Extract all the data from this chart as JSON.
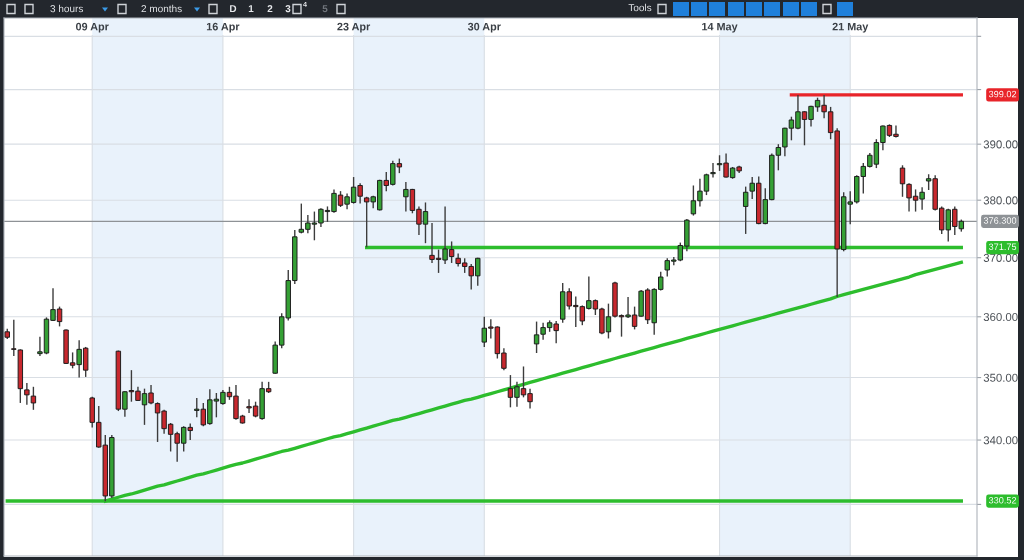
{
  "chart_data": {
    "type": "candlestick",
    "categories": [
      null,
      null,
      null,
      null,
      null,
      null,
      null,
      null,
      null,
      null,
      null,
      null,
      null,
      "09 Apr",
      null,
      null,
      null,
      null,
      null,
      null,
      null,
      null,
      null,
      null,
      null,
      null,
      null,
      null,
      null,
      null,
      null,
      null,
      null,
      "16 Apr",
      null,
      null,
      null,
      null,
      null,
      null,
      null,
      null,
      null,
      null,
      null,
      null,
      null,
      null,
      null,
      null,
      null,
      null,
      null,
      "23 Apr",
      null,
      null,
      null,
      null,
      null,
      null,
      null,
      null,
      null,
      null,
      null,
      null,
      null,
      null,
      null,
      null,
      null,
      null,
      null,
      "30 Apr",
      null,
      null,
      null,
      null,
      null,
      null,
      null,
      null,
      null,
      null,
      null,
      null,
      null,
      null,
      null,
      null,
      null,
      null,
      null,
      null,
      null,
      null,
      null,
      null,
      null,
      null,
      null,
      null,
      null,
      null,
      null,
      null,
      null,
      null,
      null,
      "14 May",
      null,
      null,
      null,
      null,
      null,
      null,
      null,
      null,
      null,
      null,
      null,
      null,
      null,
      null,
      null,
      null,
      null,
      null,
      null,
      "21 May",
      null,
      null,
      null,
      null,
      null,
      null,
      null,
      null,
      null,
      null,
      null,
      null,
      null,
      null,
      null,
      null,
      null
    ],
    "ohlc": [
      [
        357.5,
        358.0,
        356.3,
        356.6
      ],
      [
        354.7,
        359.5,
        353.5,
        354.6
      ],
      [
        354.5,
        354.6,
        345.9,
        348.2
      ],
      [
        348.0,
        349.1,
        345.6,
        347.2
      ],
      [
        347.0,
        348.5,
        344.8,
        345.9
      ],
      [
        353.9,
        356.7,
        353.5,
        354.2
      ],
      [
        354.0,
        359.9,
        353.8,
        359.6
      ],
      [
        359.4,
        364.8,
        359.3,
        361.2
      ],
      [
        361.3,
        361.7,
        358.4,
        359.2
      ],
      [
        357.8,
        357.9,
        352.2,
        352.3
      ],
      [
        352.4,
        354.1,
        351.5,
        352.0
      ],
      [
        352.1,
        356.1,
        350.0,
        354.6
      ],
      [
        354.8,
        355.0,
        350.1,
        351.2
      ],
      [
        346.7,
        346.9,
        342.0,
        342.8
      ],
      [
        342.8,
        345.4,
        338.8,
        338.9
      ],
      [
        339.2,
        340.8,
        330.5,
        331.3
      ],
      [
        331.3,
        340.8,
        331.0,
        340.4
      ],
      [
        354.3,
        354.4,
        344.6,
        344.9
      ],
      [
        344.9,
        347.8,
        343.7,
        347.7
      ],
      [
        347.9,
        351.2,
        346.1,
        347.7
      ],
      [
        347.8,
        348.5,
        346.2,
        346.3
      ],
      [
        345.6,
        348.2,
        342.4,
        347.4
      ],
      [
        347.5,
        348.8,
        345.7,
        345.9
      ],
      [
        345.8,
        346.0,
        339.7,
        344.3
      ],
      [
        344.6,
        344.8,
        341.0,
        341.8
      ],
      [
        342.5,
        342.7,
        338.2,
        340.9
      ],
      [
        341.0,
        341.3,
        336.6,
        339.5
      ],
      [
        339.5,
        342.2,
        338.2,
        342.0
      ],
      [
        342.0,
        342.6,
        340.0,
        341.5
      ],
      [
        344.7,
        346.7,
        343.6,
        344.9
      ],
      [
        344.9,
        345.9,
        342.2,
        342.4
      ],
      [
        342.6,
        348.1,
        342.4,
        346.4
      ],
      [
        346.2,
        347.5,
        343.6,
        346.5
      ],
      [
        345.8,
        348.0,
        345.6,
        347.6
      ],
      [
        347.6,
        348.5,
        346.4,
        346.9
      ],
      [
        347.0,
        348.8,
        343.2,
        343.4
      ],
      [
        343.8,
        344.0,
        342.6,
        342.7
      ],
      [
        345.3,
        346.5,
        344.3,
        345.1
      ],
      [
        345.4,
        346.1,
        343.6,
        343.8
      ],
      [
        343.4,
        349.3,
        343.2,
        348.2
      ],
      [
        348.2,
        349.3,
        347.5,
        347.7
      ],
      [
        350.7,
        355.9,
        350.6,
        355.3
      ],
      [
        355.3,
        360.6,
        354.8,
        360.0
      ],
      [
        359.8,
        367.9,
        359.4,
        366.1
      ],
      [
        366.1,
        374.8,
        365.5,
        373.6
      ],
      [
        374.4,
        379.4,
        374.2,
        374.9
      ],
      [
        374.9,
        377.4,
        374.2,
        376.0
      ],
      [
        375.8,
        378.0,
        373.0,
        376.0
      ],
      [
        376.0,
        378.6,
        375.3,
        378.4
      ],
      [
        378.0,
        378.9,
        376.2,
        378.2
      ],
      [
        378.0,
        381.9,
        377.8,
        381.2
      ],
      [
        380.9,
        381.6,
        378.8,
        379.1
      ],
      [
        379.3,
        381.2,
        378.4,
        380.6
      ],
      [
        379.6,
        384.1,
        379.4,
        382.3
      ],
      [
        382.6,
        383.0,
        379.4,
        380.7
      ],
      [
        380.4,
        380.6,
        371.8,
        379.7
      ],
      [
        379.7,
        380.8,
        378.6,
        380.6
      ],
      [
        378.3,
        383.6,
        378.2,
        383.5
      ],
      [
        383.5,
        385.0,
        381.6,
        382.6
      ],
      [
        382.8,
        387.0,
        382.6,
        386.5
      ],
      [
        386.5,
        387.4,
        384.8,
        385.9
      ],
      [
        380.6,
        383.2,
        378.0,
        381.9
      ],
      [
        381.9,
        382.0,
        377.7,
        378.2
      ],
      [
        378.4,
        378.9,
        373.9,
        375.8
      ],
      [
        375.8,
        379.6,
        372.5,
        378.0
      ],
      [
        370.4,
        376.0,
        369.1,
        369.7
      ],
      [
        369.9,
        371.4,
        367.4,
        369.7
      ],
      [
        369.6,
        378.9,
        368.9,
        371.5
      ],
      [
        371.4,
        372.8,
        369.1,
        370.2
      ],
      [
        369.9,
        370.7,
        368.5,
        369.0
      ],
      [
        369.1,
        369.9,
        367.4,
        368.5
      ],
      [
        368.5,
        368.9,
        364.6,
        366.9
      ],
      [
        366.9,
        370.0,
        365.2,
        369.9
      ],
      [
        355.8,
        360.0,
        355.0,
        358.1
      ],
      [
        358.3,
        359.6,
        356.4,
        358.1
      ],
      [
        358.3,
        358.4,
        353.1,
        353.9
      ],
      [
        354.0,
        354.8,
        351.2,
        351.5
      ],
      [
        348.2,
        350.4,
        345.2,
        346.8
      ],
      [
        346.8,
        349.3,
        345.3,
        348.5
      ],
      [
        348.2,
        351.8,
        346.8,
        347.2
      ],
      [
        347.4,
        348.2,
        345.0,
        346.1
      ],
      [
        355.5,
        359.2,
        354.0,
        357.0
      ],
      [
        357.1,
        359.0,
        356.2,
        358.2
      ],
      [
        358.2,
        359.4,
        357.5,
        359.0
      ],
      [
        358.8,
        359.3,
        355.6,
        357.7
      ],
      [
        359.6,
        365.7,
        359.0,
        364.2
      ],
      [
        364.2,
        364.8,
        361.2,
        361.8
      ],
      [
        361.9,
        363.4,
        358.3,
        361.7
      ],
      [
        361.7,
        361.9,
        358.6,
        359.3
      ],
      [
        361.4,
        366.8,
        361.2,
        362.7
      ],
      [
        362.7,
        362.9,
        360.3,
        361.3
      ],
      [
        361.3,
        361.5,
        357.1,
        357.3
      ],
      [
        357.5,
        362.2,
        356.4,
        360.0
      ],
      [
        365.7,
        365.9,
        359.9,
        360.1
      ],
      [
        360.2,
        360.4,
        356.7,
        360.0
      ],
      [
        360.0,
        363.3,
        359.8,
        360.3
      ],
      [
        360.3,
        361.7,
        357.9,
        358.4
      ],
      [
        360.1,
        364.5,
        360.0,
        364.3
      ],
      [
        364.5,
        364.8,
        358.8,
        359.5
      ],
      [
        359.0,
        364.8,
        357.0,
        364.6
      ],
      [
        364.6,
        367.6,
        364.4,
        366.7
      ],
      [
        367.9,
        369.9,
        366.8,
        369.5
      ],
      [
        369.4,
        370.1,
        368.7,
        369.6
      ],
      [
        369.6,
        372.6,
        369.4,
        372.1
      ],
      [
        372.0,
        376.7,
        371.1,
        376.5
      ],
      [
        377.6,
        382.6,
        377.3,
        379.9
      ],
      [
        379.9,
        383.8,
        378.9,
        381.6
      ],
      [
        381.6,
        384.7,
        380.9,
        384.5
      ],
      [
        384.7,
        386.6,
        384.0,
        384.9
      ],
      [
        386.3,
        388.0,
        385.2,
        386.5
      ],
      [
        386.6,
        388.3,
        384.0,
        384.1
      ],
      [
        384.0,
        385.9,
        383.8,
        385.7
      ],
      [
        385.9,
        386.1,
        384.8,
        385.2
      ],
      [
        378.9,
        382.4,
        374.1,
        381.4
      ],
      [
        381.6,
        384.1,
        380.2,
        383.0
      ],
      [
        383.0,
        384.2,
        375.8,
        375.9
      ],
      [
        375.9,
        382.1,
        375.8,
        380.1
      ],
      [
        380.1,
        388.3,
        380.0,
        388.0
      ],
      [
        388.0,
        390.0,
        385.3,
        389.4
      ],
      [
        389.5,
        393.0,
        387.8,
        392.9
      ],
      [
        392.9,
        395.0,
        390.7,
        394.4
      ],
      [
        392.9,
        399.0,
        392.7,
        395.9
      ],
      [
        395.9,
        396.0,
        389.8,
        394.5
      ],
      [
        394.5,
        397.0,
        393.2,
        396.9
      ],
      [
        396.8,
        398.5,
        395.9,
        398.0
      ],
      [
        397.1,
        399.0,
        394.7,
        395.9
      ],
      [
        395.9,
        396.8,
        390.9,
        392.1
      ],
      [
        392.4,
        392.9,
        363.3,
        371.5
      ],
      [
        371.4,
        381.4,
        371.1,
        380.6
      ],
      [
        379.3,
        381.6,
        375.8,
        379.7
      ],
      [
        379.7,
        384.4,
        379.4,
        384.2
      ],
      [
        384.2,
        386.6,
        381.2,
        386.0
      ],
      [
        386.0,
        388.4,
        385.8,
        388.0
      ],
      [
        386.4,
        390.9,
        385.7,
        390.3
      ],
      [
        390.3,
        393.4,
        388.9,
        393.3
      ],
      [
        393.4,
        393.6,
        391.3,
        391.6
      ],
      [
        391.8,
        393.4,
        391.2,
        391.4
      ],
      [
        385.7,
        386.2,
        380.6,
        382.9
      ],
      [
        382.8,
        383.0,
        378.0,
        380.4
      ],
      [
        380.7,
        381.9,
        378.0,
        380.0
      ],
      [
        380.2,
        382.3,
        378.3,
        381.4
      ],
      [
        383.4,
        384.6,
        381.8,
        383.8
      ],
      [
        383.8,
        384.4,
        378.2,
        378.4
      ],
      [
        378.6,
        378.9,
        374.1,
        374.8
      ],
      [
        374.8,
        378.5,
        372.8,
        378.3
      ],
      [
        378.4,
        378.9,
        373.9,
        375.4
      ],
      [
        375.0,
        376.6,
        374.5,
        376.3
      ]
    ],
    "colors": [
      "#c8282e",
      "#c8282e",
      "#c8282e",
      "#c8282e",
      "#c8282e",
      "#35a035",
      "#35a035",
      "#35a035",
      "#c8282e",
      "#c8282e",
      "#c8282e",
      "#35a035",
      "#c8282e",
      "#c8282e",
      "#c8282e",
      "#c8282e",
      "#35a035",
      "#c8282e",
      "#35a035",
      "#c8282e",
      "#c8282e",
      "#35a035",
      "#c8282e",
      "#c8282e",
      "#c8282e",
      "#c8282e",
      "#c8282e",
      "#35a035",
      "#c8282e",
      "#35a035",
      "#c8282e",
      "#35a035",
      "#35a035",
      "#35a035",
      "#c8282e",
      "#c8282e",
      "#c8282e",
      "#c8282e",
      "#c8282e",
      "#35a035",
      "#c8282e",
      "#35a035",
      "#35a035",
      "#35a035",
      "#35a035",
      "#35a035",
      "#35a035",
      "#35a035",
      "#35a035",
      "#35a035",
      "#35a035",
      "#c8282e",
      "#35a035",
      "#35a035",
      "#c8282e",
      "#c8282e",
      "#35a035",
      "#35a035",
      "#c8282e",
      "#35a035",
      "#c8282e",
      "#35a035",
      "#c8282e",
      "#c8282e",
      "#35a035",
      "#c8282e",
      "#c8282e",
      "#35a035",
      "#c8282e",
      "#c8282e",
      "#c8282e",
      "#c8282e",
      "#35a035",
      "#35a035",
      "#c8282e",
      "#c8282e",
      "#c8282e",
      "#c8282e",
      "#35a035",
      "#c8282e",
      "#c8282e",
      "#35a035",
      "#35a035",
      "#35a035",
      "#c8282e",
      "#35a035",
      "#c8282e",
      "#c8282e",
      "#c8282e",
      "#35a035",
      "#c8282e",
      "#c8282e",
      "#35a035",
      "#c8282e",
      "#c8282e",
      "#35a035",
      "#c8282e",
      "#35a035",
      "#c8282e",
      "#35a035",
      "#35a035",
      "#35a035",
      "#35a035",
      "#35a035",
      "#35a035",
      "#35a035",
      "#35a035",
      "#35a035",
      "#35a035",
      "#35a035",
      "#c8282e",
      "#35a035",
      "#c8282e",
      "#35a035",
      "#35a035",
      "#c8282e",
      "#35a035",
      "#35a035",
      "#35a035",
      "#35a035",
      "#35a035",
      "#35a035",
      "#c8282e",
      "#35a035",
      "#35a035",
      "#c8282e",
      "#c8282e",
      "#c8282e",
      "#35a035",
      "#35a035",
      "#35a035",
      "#35a035",
      "#35a035",
      "#35a035",
      "#35a035",
      "#c8282e",
      "#c8282e",
      "#c8282e",
      "#c8282e",
      "#c8282e",
      "#35a035",
      "#35a035",
      "#c8282e",
      "#c8282e",
      "#35a035",
      "#c8282e",
      "#35a035"
    ],
    "series": [
      {
        "type": "line",
        "name": "330.52",
        "color": "#2dbd2d",
        "values": [
          330.52,
          330.52,
          330.52,
          330.52,
          330.52,
          330.52,
          330.52,
          330.52,
          330.52,
          330.52,
          330.52,
          330.52,
          330.52,
          330.52,
          330.52,
          330.52,
          330.52,
          330.52,
          330.52,
          330.52,
          330.52,
          330.52,
          330.52,
          330.52,
          330.52,
          330.52,
          330.52,
          330.52,
          330.52,
          330.52,
          330.52,
          330.52,
          330.52,
          330.52,
          330.52,
          330.52,
          330.52,
          330.52,
          330.52,
          330.52,
          330.52,
          330.52,
          330.52,
          330.52,
          330.52,
          330.52,
          330.52,
          330.52,
          330.52,
          330.52,
          330.52,
          330.52,
          330.52,
          330.52,
          330.52,
          330.52,
          330.52,
          330.52,
          330.52,
          330.52,
          330.52,
          330.52,
          330.52,
          330.52,
          330.52,
          330.52,
          330.52,
          330.52,
          330.52,
          330.52,
          330.52,
          330.52,
          330.52,
          330.52,
          330.52,
          330.52,
          330.52,
          330.52,
          330.52,
          330.52,
          330.52,
          330.52,
          330.52,
          330.52,
          330.52,
          330.52,
          330.52,
          330.52,
          330.52,
          330.52,
          330.52,
          330.52,
          330.52,
          330.52,
          330.52,
          330.52,
          330.52,
          330.52,
          330.52,
          330.52,
          330.52,
          330.52,
          330.52,
          330.52,
          330.52,
          330.52,
          330.52,
          330.52,
          330.52,
          330.52,
          330.52,
          330.52,
          330.52,
          330.52,
          330.52,
          330.52,
          330.52,
          330.52,
          330.52,
          330.52,
          330.52,
          330.52,
          330.52,
          330.52,
          330.52,
          330.52,
          330.52,
          330.52,
          330.52,
          330.52,
          330.52,
          330.52,
          330.52,
          330.52,
          330.52,
          330.52,
          330.52,
          330.52,
          330.52,
          330.52,
          330.52,
          330.52,
          330.52,
          330.52,
          330.52,
          330.52,
          330.52
        ]
      },
      {
        "type": "line",
        "color": "#2dbd2d",
        "values": [
          null,
          null,
          null,
          null,
          null,
          null,
          null,
          null,
          null,
          null,
          null,
          null,
          null,
          null,
          null,
          330.5,
          330.8,
          331.1,
          331.4,
          331.6,
          331.9,
          332.2,
          332.5,
          332.8,
          333.0,
          333.3,
          333.6,
          333.9,
          334.2,
          334.5,
          334.7,
          335.0,
          335.3,
          335.6,
          335.9,
          336.2,
          336.4,
          336.7,
          337.0,
          337.3,
          337.6,
          337.9,
          338.2,
          338.4,
          338.7,
          339.0,
          339.3,
          339.6,
          339.9,
          340.2,
          340.5,
          340.7,
          341.0,
          341.3,
          341.6,
          341.9,
          342.2,
          342.5,
          342.8,
          343.1,
          343.3,
          343.6,
          343.9,
          344.2,
          344.5,
          344.8,
          345.1,
          345.4,
          345.7,
          346.0,
          346.3,
          346.5,
          346.8,
          347.1,
          347.4,
          347.7,
          348.0,
          348.3,
          348.6,
          348.9,
          349.2,
          349.5,
          349.8,
          350.1,
          350.4,
          350.7,
          351.0,
          351.3,
          351.6,
          351.9,
          352.2,
          352.5,
          352.8,
          353.1,
          353.4,
          353.7,
          354.0,
          354.3,
          354.6,
          354.9,
          355.2,
          355.5,
          355.8,
          356.1,
          356.4,
          356.7,
          357.0,
          357.3,
          357.6,
          357.9,
          358.2,
          358.5,
          358.8,
          359.1,
          359.4,
          359.7,
          360.0,
          360.3,
          360.6,
          360.9,
          361.2,
          361.5,
          361.8,
          362.1,
          362.4,
          362.7,
          363.0,
          363.4,
          363.7,
          364.0,
          364.3,
          364.6,
          364.9,
          365.2,
          365.5,
          365.8,
          366.1,
          366.4,
          366.7,
          367.1,
          367.4,
          367.7,
          368.0,
          368.3,
          368.6,
          368.9,
          369.2
        ]
      },
      {
        "type": "line",
        "name": "371.75",
        "color": "#2dbd2d",
        "values": [
          null,
          null,
          null,
          null,
          null,
          null,
          null,
          null,
          null,
          null,
          null,
          null,
          null,
          null,
          null,
          null,
          null,
          null,
          null,
          null,
          null,
          null,
          null,
          null,
          null,
          null,
          null,
          null,
          null,
          null,
          null,
          null,
          null,
          null,
          null,
          null,
          null,
          null,
          null,
          null,
          null,
          null,
          null,
          null,
          null,
          null,
          null,
          null,
          null,
          null,
          null,
          null,
          null,
          null,
          null,
          371.75,
          371.75,
          371.75,
          371.75,
          371.75,
          371.75,
          371.75,
          371.75,
          371.75,
          371.75,
          371.75,
          371.75,
          371.75,
          371.75,
          371.75,
          371.75,
          371.75,
          371.75,
          371.75,
          371.75,
          371.75,
          371.75,
          371.75,
          371.75,
          371.75,
          371.75,
          371.75,
          371.75,
          371.75,
          371.75,
          371.75,
          371.75,
          371.75,
          371.75,
          371.75,
          371.75,
          371.75,
          371.75,
          371.75,
          371.75,
          371.75,
          371.75,
          371.75,
          371.75,
          371.75,
          371.75,
          371.75,
          371.75,
          371.75,
          371.75,
          371.75,
          371.75,
          371.75,
          371.75,
          371.75,
          371.75,
          371.75,
          371.75,
          371.75,
          371.75,
          371.75,
          371.75,
          371.75,
          371.75,
          371.75,
          371.75,
          371.75,
          371.75,
          371.75,
          371.75,
          371.75,
          371.75,
          371.75,
          371.75,
          371.75,
          371.75,
          371.75,
          371.75,
          371.75,
          371.75,
          371.75,
          371.75,
          371.75,
          371.75,
          371.75,
          371.75,
          371.75,
          371.75,
          371.75,
          371.75,
          371.75,
          371.75
        ]
      },
      {
        "type": "line",
        "name": "399.02",
        "color": "#e8242a",
        "values": [
          null,
          null,
          null,
          null,
          null,
          null,
          null,
          null,
          null,
          null,
          null,
          null,
          null,
          null,
          null,
          null,
          null,
          null,
          null,
          null,
          null,
          null,
          null,
          null,
          null,
          null,
          null,
          null,
          null,
          null,
          null,
          null,
          null,
          null,
          null,
          null,
          null,
          null,
          null,
          null,
          null,
          null,
          null,
          null,
          null,
          null,
          null,
          null,
          null,
          null,
          null,
          null,
          null,
          null,
          null,
          null,
          null,
          null,
          null,
          null,
          null,
          null,
          null,
          null,
          null,
          null,
          null,
          null,
          null,
          null,
          null,
          null,
          null,
          null,
          null,
          null,
          null,
          null,
          null,
          null,
          null,
          null,
          null,
          null,
          null,
          null,
          null,
          null,
          null,
          null,
          null,
          null,
          null,
          null,
          null,
          null,
          null,
          null,
          null,
          null,
          null,
          null,
          null,
          null,
          null,
          null,
          null,
          null,
          null,
          null,
          null,
          null,
          null,
          null,
          null,
          null,
          null,
          null,
          null,
          null,
          399.02,
          399.02,
          399.02,
          399.02,
          399.02,
          399.02,
          399.02,
          399.02,
          399.02,
          399.02,
          399.02,
          399.02,
          399.02,
          399.02,
          399.02,
          399.02,
          399.02,
          399.02,
          399.02,
          399.02,
          399.02,
          399.02,
          399.02,
          399.02,
          399.02,
          399.02,
          399.02
        ]
      }
    ],
    "log": true,
    "ylim": [
      322.2,
      413.5
    ],
    "yticks": [
      {
        "value": 330,
        "label": null
      },
      {
        "value": 340,
        "label": "340.00"
      },
      {
        "value": 350,
        "label": "350.00"
      },
      {
        "value": 360,
        "label": "360.00"
      },
      {
        "value": 370,
        "label": "370.00"
      },
      {
        "value": 380,
        "label": "380.00"
      },
      {
        "value": 390,
        "label": "390.00"
      },
      {
        "value": 400,
        "label": null
      },
      {
        "value": 410,
        "label": null
      }
    ],
    "grid": true,
    "ref_lines": [
      {
        "axis": "y",
        "value": 376.3,
        "label": "376.300",
        "color": "#8e9296"
      }
    ],
    "bands": [
      {
        "axis": "x",
        "from": "09 Apr",
        "to": "16 Apr",
        "color": "#e9f2fb"
      },
      {
        "axis": "x",
        "from": "23 Apr",
        "to": "30 Apr",
        "color": "#e9f2fb"
      },
      {
        "axis": "x",
        "from": "14 May",
        "to": "21 May",
        "color": "#e9f2fb"
      }
    ],
    "annotations": [
      "3 hours",
      "2 months",
      "D",
      "1",
      "2",
      "3",
      "4",
      "5",
      "Tools"
    ]
  }
}
